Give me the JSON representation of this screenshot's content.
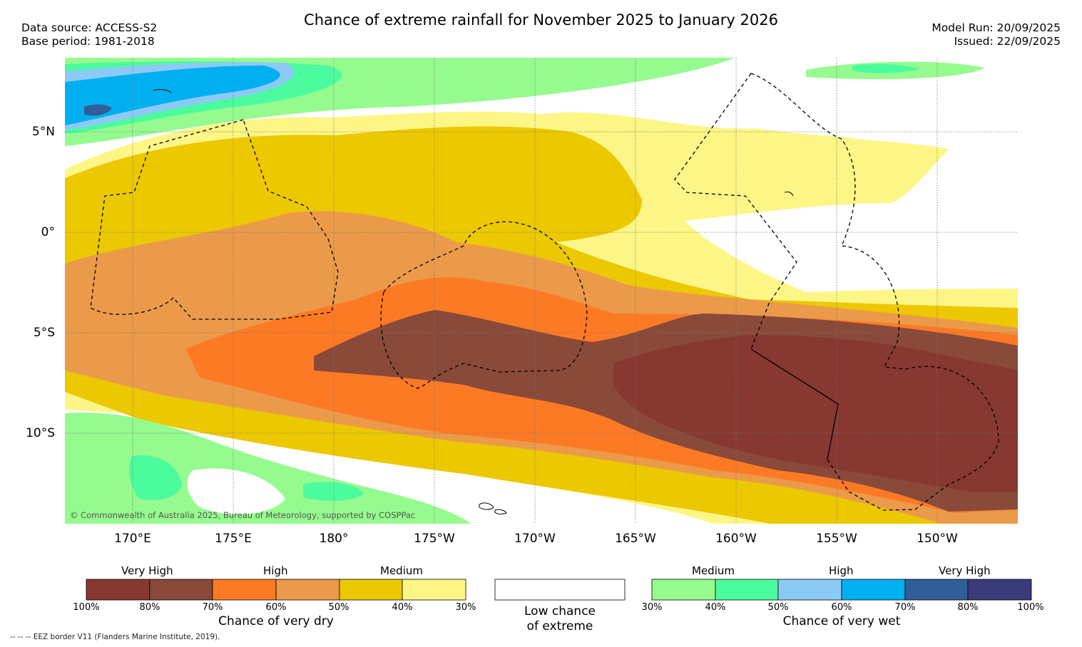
{
  "header": {
    "title": "Chance of extreme rainfall for November 2025 to January 2026",
    "data_source": "Data source: ACCESS-S2",
    "base_period": "Base period: 1981-2018",
    "model_run": "Model Run: 20/09/2025",
    "issued": "Issued: 22/09/2025"
  },
  "map": {
    "lat_labels": [
      "5°N",
      "0°",
      "5°S",
      "10°S"
    ],
    "lon_labels": [
      "170°E",
      "175°E",
      "180°",
      "175°W",
      "170°W",
      "165°W",
      "160°W",
      "155°W",
      "150°W"
    ],
    "copyright": "© Commonwealth of Australia 2025, Bureau of Meteorology, supported by COSPPac"
  },
  "colors": {
    "dry": [
      "#873830",
      "#894a3a",
      "#fd7a25",
      "#eb9a4a",
      "#ecc800",
      "#fdf687"
    ],
    "wet": [
      "#96fb8f",
      "#4afc9e",
      "#8ccaf6",
      "#00aff0",
      "#305e98",
      "#3a3b7b"
    ],
    "none": "#ffffff"
  },
  "legend": {
    "dry": {
      "categories": [
        "Very High",
        "High",
        "Medium"
      ],
      "ticks": [
        "100%",
        "80%",
        "70%",
        "60%",
        "50%",
        "40%",
        "30%"
      ],
      "caption": "Chance of very dry"
    },
    "none": {
      "caption_line1": "Low chance",
      "caption_line2": "of extreme"
    },
    "wet": {
      "categories": [
        "Medium",
        "High",
        "Very High"
      ],
      "ticks": [
        "30%",
        "40%",
        "50%",
        "60%",
        "70%",
        "80%",
        "100%"
      ],
      "caption": "Chance of very wet"
    }
  },
  "footnote": "-- -- -- EEZ border V11 (Flanders Marine Institute, 2019)."
}
